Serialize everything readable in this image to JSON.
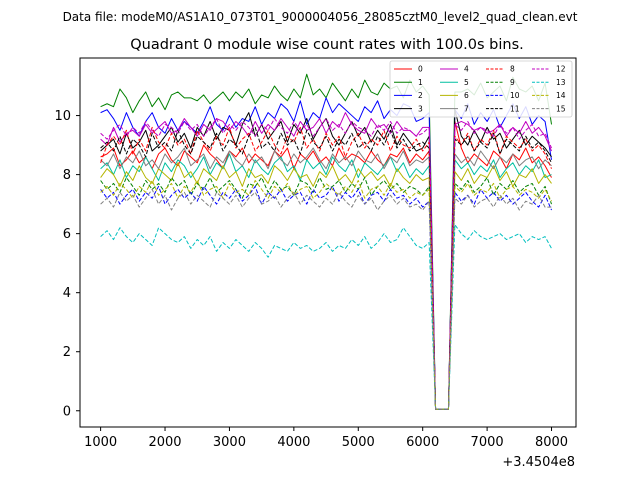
{
  "suptitle": "Data file: modeM0/AS1A10_073T01_9000004056_28085cztM0_level2_quad_clean.evt",
  "chart_data": {
    "type": "line",
    "title": "Quadrant 0 module wise count rates with 100.0s bins.",
    "xlabel": "",
    "ylabel": "",
    "x_offset_label": "+3.4504e8",
    "xlim": [
      680,
      8380
    ],
    "ylim": [
      -0.55,
      11.95
    ],
    "xticks": [
      1000,
      2000,
      3000,
      4000,
      5000,
      6000,
      7000,
      8000
    ],
    "yticks": [
      0,
      2,
      4,
      6,
      8,
      10
    ],
    "grid": false,
    "legend_position": "top-right",
    "x_start": 1000,
    "x_step": 100,
    "series": [
      {
        "name": "0",
        "color": "#ff0000",
        "dash": "solid",
        "values": [
          8.6,
          8.7,
          8.9,
          8.3,
          8.5,
          8.8,
          8.4,
          8.6,
          8.2,
          8.7,
          8.9,
          8.5,
          8.3,
          8.8,
          8.6,
          8.4,
          9.0,
          8.7,
          8.5,
          8.2,
          8.8,
          8.6,
          8.9,
          8.4,
          8.7,
          8.5,
          8.3,
          8.8,
          8.6,
          8.9,
          8.2,
          8.7,
          8.5,
          8.8,
          8.4,
          8.6,
          8.3,
          8.9,
          8.5,
          8.7,
          8.6,
          8.4,
          8.8,
          8.5,
          8.3,
          8.7,
          8.6,
          8.9,
          8.4,
          8.7,
          8.5,
          8.8,
          0.05,
          0.05,
          0.05,
          9.8,
          8.9,
          8.4,
          8.7,
          8.5,
          8.3,
          8.8,
          8.6,
          8.2,
          8.7,
          8.5,
          8.9,
          8.4,
          8.6,
          8.3,
          7.9
        ]
      },
      {
        "name": "1",
        "color": "#008000",
        "dash": "solid",
        "values": [
          10.3,
          10.4,
          10.3,
          10.9,
          10.6,
          10.1,
          10.5,
          10.8,
          10.3,
          10.6,
          10.2,
          10.7,
          10.8,
          10.6,
          10.6,
          10.5,
          10.7,
          10.4,
          10.6,
          10.8,
          10.5,
          10.8,
          10.6,
          10.9,
          10.4,
          10.7,
          10.6,
          11.0,
          10.7,
          10.5,
          10.9,
          10.6,
          11.4,
          10.7,
          10.9,
          10.6,
          11.1,
          10.8,
          10.5,
          10.9,
          10.6,
          11.2,
          10.8,
          10.7,
          11.1,
          10.9,
          11.0,
          10.6,
          11.2,
          10.8,
          11.0,
          10.7,
          0.05,
          0.05,
          0.05,
          10.8,
          10.8,
          10.9,
          10.7,
          11.1,
          10.6,
          10.8,
          11.0,
          10.5,
          11.3,
          10.9,
          10.8,
          11.0,
          10.5,
          11.1,
          9.7
        ]
      },
      {
        "name": "2",
        "color": "#0000ff",
        "dash": "solid",
        "values": [
          10.1,
          10.2,
          9.9,
          9.5,
          10.1,
          9.6,
          9.3,
          9.8,
          10.1,
          9.6,
          9.4,
          9.9,
          9.5,
          9.8,
          9.6,
          9.4,
          9.8,
          10.3,
          9.7,
          9.5,
          10.0,
          9.6,
          9.9,
          9.8,
          10.3,
          9.7,
          10.1,
          9.9,
          10.4,
          10.2,
          9.8,
          10.5,
          9.7,
          10.1,
          9.9,
          10.6,
          10.1,
          10.4,
          10.2,
          10.0,
          9.8,
          10.3,
          10.1,
          10.5,
          9.9,
          10.2,
          10.0,
          10.4,
          10.3,
          9.8,
          9.9,
          10.1,
          0.05,
          0.05,
          0.05,
          10.2,
          9.9,
          10.4,
          9.7,
          10.1,
          9.8,
          10.2,
          9.6,
          10.0,
          10.4,
          9.9,
          10.3,
          9.7,
          10.0,
          9.8,
          8.5
        ]
      },
      {
        "name": "3",
        "color": "#000000",
        "dash": "solid",
        "values": [
          8.8,
          9.0,
          9.2,
          8.7,
          9.4,
          8.9,
          9.1,
          9.5,
          8.8,
          9.0,
          9.3,
          9.6,
          9.1,
          9.4,
          8.9,
          9.6,
          9.3,
          9.8,
          9.2,
          9.6,
          9.5,
          9.0,
          9.7,
          10.1,
          9.3,
          9.7,
          9.2,
          9.5,
          9.8,
          9.1,
          9.7,
          9.4,
          9.9,
          9.2,
          9.6,
          9.9,
          9.3,
          9.0,
          9.4,
          9.8,
          9.3,
          9.6,
          9.1,
          9.5,
          9.2,
          9.7,
          9.0,
          9.4,
          9.1,
          8.8,
          8.9,
          9.3,
          0.05,
          0.05,
          0.05,
          10.2,
          9.3,
          9.0,
          9.5,
          9.1,
          9.6,
          9.2,
          9.4,
          8.9,
          9.2,
          9.5,
          9.0,
          9.3,
          9.1,
          8.9,
          8.6
        ]
      },
      {
        "name": "4",
        "color": "#c000c0",
        "dash": "solid",
        "values": [
          9.2,
          9.0,
          9.6,
          9.1,
          9.4,
          9.5,
          9.3,
          9.7,
          9.4,
          9.6,
          9.8,
          9.4,
          9.5,
          9.9,
          9.6,
          9.3,
          9.7,
          9.5,
          9.9,
          9.8,
          9.5,
          9.8,
          9.6,
          9.3,
          9.8,
          9.4,
          9.7,
          9.5,
          9.9,
          9.6,
          9.3,
          9.8,
          9.5,
          9.6,
          9.9,
          9.4,
          9.8,
          9.6,
          10.1,
          9.7,
          9.5,
          9.4,
          9.9,
          9.6,
          9.7,
          9.4,
          9.8,
          9.5,
          9.5,
          9.3,
          9.6,
          9.6,
          0.05,
          0.05,
          0.05,
          9.7,
          9.8,
          9.7,
          9.5,
          9.6,
          9.4,
          9.5,
          9.7,
          9.3,
          9.6,
          9.4,
          9.8,
          9.4,
          9.6,
          9.3,
          8.8
        ]
      },
      {
        "name": "5",
        "color": "#00bfa0",
        "dash": "solid",
        "values": [
          8.2,
          8.4,
          8.0,
          8.5,
          7.9,
          8.3,
          8.1,
          8.6,
          8.2,
          7.8,
          8.4,
          8.1,
          8.5,
          8.3,
          7.9,
          8.2,
          8.6,
          8.0,
          8.4,
          8.2,
          8.7,
          8.1,
          8.3,
          7.9,
          8.5,
          8.2,
          8.0,
          8.4,
          8.6,
          8.1,
          8.3,
          7.8,
          8.5,
          8.2,
          8.4,
          8.0,
          8.6,
          8.3,
          8.1,
          8.5,
          7.9,
          8.4,
          8.2,
          8.0,
          8.3,
          8.6,
          8.1,
          8.4,
          7.9,
          8.2,
          8.0,
          8.3,
          0.05,
          0.05,
          0.05,
          8.5,
          8.2,
          8.4,
          8.0,
          8.3,
          8.1,
          8.5,
          7.9,
          8.2,
          8.4,
          8.0,
          8.3,
          8.1,
          8.5,
          7.9,
          8.0
        ]
      },
      {
        "name": "6",
        "color": "#b5b500",
        "dash": "solid",
        "values": [
          7.9,
          8.2,
          8.0,
          7.6,
          8.1,
          7.8,
          8.3,
          7.9,
          7.7,
          8.2,
          8.0,
          7.8,
          8.4,
          7.9,
          8.1,
          7.7,
          8.2,
          8.0,
          7.8,
          8.3,
          7.9,
          8.1,
          7.6,
          8.2,
          7.9,
          8.0,
          7.7,
          8.3,
          8.1,
          7.8,
          8.2,
          7.9,
          8.0,
          7.6,
          8.1,
          7.9,
          8.3,
          7.8,
          8.0,
          7.7,
          8.2,
          7.9,
          8.1,
          7.8,
          8.0,
          7.6,
          8.2,
          7.9,
          7.7,
          8.0,
          7.8,
          7.9,
          0.05,
          0.05,
          0.05,
          8.1,
          7.8,
          8.2,
          7.7,
          8.0,
          7.9,
          8.3,
          7.8,
          8.1,
          7.6,
          8.0,
          7.9,
          8.2,
          7.7,
          8.0,
          7.7
        ]
      },
      {
        "name": "7",
        "color": "#808080",
        "dash": "solid",
        "values": [
          8.5,
          8.3,
          8.7,
          8.2,
          8.6,
          8.4,
          8.8,
          8.3,
          8.5,
          8.2,
          8.7,
          8.4,
          8.6,
          8.9,
          8.3,
          8.5,
          8.7,
          8.2,
          8.6,
          8.4,
          8.8,
          8.5,
          8.3,
          8.7,
          8.4,
          8.6,
          8.2,
          8.8,
          8.5,
          8.3,
          8.7,
          8.4,
          8.6,
          8.9,
          8.5,
          8.2,
          8.7,
          8.4,
          8.6,
          8.3,
          8.8,
          8.5,
          8.4,
          8.7,
          8.2,
          8.6,
          8.4,
          8.8,
          8.3,
          8.5,
          8.4,
          8.6,
          0.05,
          0.05,
          0.05,
          8.7,
          8.4,
          8.6,
          8.3,
          8.8,
          8.5,
          8.2,
          8.6,
          8.4,
          8.7,
          8.3,
          8.5,
          8.6,
          8.2,
          8.5,
          8.3
        ]
      },
      {
        "name": "8",
        "color": "#ff0000",
        "dash": "dashed",
        "values": [
          8.4,
          9.0,
          9.3,
          9.0,
          9.5,
          8.7,
          9.2,
          8.8,
          9.6,
          9.1,
          8.9,
          9.4,
          9.0,
          9.2,
          8.7,
          9.5,
          9.1,
          8.8,
          9.3,
          9.0,
          9.6,
          8.9,
          9.2,
          9.4,
          8.8,
          9.1,
          9.5,
          9.0,
          8.7,
          9.3,
          9.1,
          9.6,
          8.9,
          9.2,
          8.8,
          9.4,
          9.0,
          9.3,
          8.6,
          9.1,
          9.4,
          8.9,
          9.2,
          9.0,
          9.5,
          8.8,
          9.3,
          9.0,
          8.9,
          9.2,
          8.8,
          9.1,
          0.05,
          0.05,
          0.05,
          9.3,
          9.0,
          9.4,
          8.8,
          9.2,
          9.0,
          9.5,
          8.7,
          9.3,
          9.1,
          8.9,
          9.2,
          8.8,
          9.0,
          8.7,
          8.2
        ]
      },
      {
        "name": "9",
        "color": "#008000",
        "dash": "dashed",
        "values": [
          7.8,
          7.5,
          7.7,
          7.4,
          7.9,
          7.6,
          7.3,
          7.8,
          7.5,
          7.7,
          7.4,
          7.9,
          7.6,
          7.8,
          7.3,
          7.7,
          7.5,
          7.9,
          7.4,
          7.6,
          7.8,
          7.5,
          7.2,
          7.7,
          7.6,
          7.9,
          7.4,
          7.8,
          7.5,
          7.6,
          7.3,
          7.8,
          7.7,
          7.4,
          7.9,
          7.5,
          7.6,
          7.8,
          7.4,
          7.7,
          7.5,
          7.9,
          7.3,
          7.6,
          7.8,
          7.5,
          7.7,
          7.4,
          7.6,
          7.5,
          7.3,
          7.6,
          0.05,
          0.05,
          0.05,
          7.7,
          7.5,
          7.8,
          7.4,
          7.6,
          7.9,
          7.3,
          7.7,
          7.5,
          7.8,
          7.4,
          7.6,
          7.7,
          7.3,
          7.6,
          7.0
        ]
      },
      {
        "name": "10",
        "color": "#0000ff",
        "dash": "dashed",
        "values": [
          7.5,
          7.2,
          7.4,
          7.0,
          7.3,
          7.5,
          7.1,
          7.4,
          7.2,
          7.6,
          7.0,
          7.3,
          7.5,
          7.2,
          7.4,
          7.1,
          7.6,
          7.3,
          7.0,
          7.4,
          7.2,
          7.5,
          7.1,
          7.3,
          7.6,
          7.0,
          7.4,
          7.2,
          7.5,
          7.1,
          7.3,
          7.4,
          7.0,
          7.5,
          7.2,
          7.3,
          7.6,
          7.1,
          7.4,
          7.2,
          7.5,
          7.0,
          7.3,
          7.4,
          7.1,
          7.5,
          7.2,
          7.3,
          7.0,
          7.2,
          6.9,
          7.1,
          0.05,
          0.05,
          0.05,
          7.4,
          7.1,
          7.3,
          7.0,
          7.5,
          7.2,
          7.4,
          7.1,
          7.3,
          7.0,
          7.2,
          7.4,
          7.1,
          6.9,
          7.3,
          6.8
        ]
      },
      {
        "name": "11",
        "color": "#000000",
        "dash": "dashed",
        "values": [
          8.9,
          9.1,
          8.8,
          9.3,
          8.7,
          9.2,
          9.0,
          8.6,
          9.4,
          8.9,
          9.1,
          8.8,
          9.5,
          9.0,
          8.7,
          9.3,
          9.1,
          8.9,
          9.4,
          8.8,
          9.2,
          9.0,
          8.7,
          9.3,
          9.6,
          8.9,
          9.1,
          8.8,
          9.4,
          9.0,
          9.2,
          8.7,
          9.5,
          9.1,
          8.9,
          9.3,
          8.8,
          9.2,
          9.0,
          9.4,
          8.9,
          9.1,
          8.8,
          9.3,
          9.0,
          9.5,
          8.9,
          9.2,
          8.8,
          9.0,
          9.1,
          8.9,
          0.05,
          0.05,
          0.05,
          9.2,
          9.0,
          9.3,
          8.8,
          9.1,
          8.9,
          9.4,
          8.7,
          9.2,
          9.0,
          8.8,
          9.3,
          8.9,
          9.1,
          8.8,
          8.4
        ]
      },
      {
        "name": "12",
        "color": "#c000c0",
        "dash": "dashed",
        "values": [
          9.4,
          9.2,
          9.5,
          9.7,
          9.3,
          9.6,
          9.4,
          9.8,
          9.5,
          9.3,
          9.7,
          9.6,
          9.4,
          9.8,
          9.5,
          9.7,
          9.3,
          9.6,
          9.9,
          9.4,
          9.7,
          9.5,
          9.8,
          9.6,
          9.3,
          9.7,
          9.5,
          9.9,
          9.6,
          9.4,
          9.8,
          9.5,
          9.7,
          9.3,
          9.6,
          9.9,
          9.5,
          9.7,
          9.4,
          9.8,
          9.6,
          9.5,
          9.3,
          9.7,
          9.5,
          9.8,
          9.4,
          9.6,
          9.5,
          9.3,
          9.4,
          9.6,
          0.05,
          0.05,
          0.05,
          9.7,
          9.5,
          9.8,
          9.4,
          9.6,
          9.5,
          9.3,
          9.7,
          9.4,
          9.6,
          9.2,
          9.5,
          9.7,
          9.3,
          9.4,
          8.9
        ]
      },
      {
        "name": "13",
        "color": "#00bfbf",
        "dash": "dashed",
        "values": [
          5.9,
          6.1,
          5.8,
          6.2,
          5.9,
          5.7,
          6.0,
          5.8,
          5.6,
          6.2,
          6.0,
          5.8,
          5.7,
          5.9,
          5.5,
          5.8,
          5.6,
          5.9,
          5.4,
          5.7,
          5.5,
          5.8,
          5.6,
          5.4,
          5.7,
          5.5,
          5.2,
          5.6,
          5.5,
          5.4,
          5.7,
          5.5,
          5.6,
          5.4,
          5.5,
          5.7,
          5.4,
          5.6,
          5.5,
          5.8,
          5.6,
          5.9,
          5.5,
          5.7,
          6.0,
          5.7,
          5.8,
          6.2,
          5.9,
          5.6,
          5.5,
          5.7,
          0.05,
          0.05,
          0.05,
          6.3,
          6.0,
          5.8,
          6.1,
          5.9,
          5.8,
          5.9,
          6.0,
          5.8,
          5.9,
          6.0,
          5.7,
          5.9,
          5.8,
          5.9,
          5.5
        ]
      },
      {
        "name": "14",
        "color": "#b5b500",
        "dash": "dashed",
        "values": [
          7.4,
          7.6,
          7.3,
          7.7,
          7.5,
          7.2,
          7.6,
          7.4,
          7.8,
          7.3,
          7.5,
          7.7,
          7.2,
          7.6,
          7.4,
          7.8,
          7.3,
          7.5,
          7.6,
          7.2,
          7.7,
          7.4,
          7.5,
          7.3,
          7.8,
          7.5,
          7.2,
          7.6,
          7.4,
          7.7,
          7.3,
          7.5,
          7.6,
          7.2,
          7.4,
          7.7,
          7.5,
          7.3,
          7.6,
          7.4,
          7.8,
          7.2,
          7.5,
          7.6,
          7.3,
          7.7,
          7.4,
          7.5,
          7.2,
          7.4,
          7.3,
          7.5,
          0.05,
          0.05,
          0.05,
          7.6,
          7.4,
          7.7,
          7.3,
          7.5,
          7.4,
          7.7,
          7.2,
          7.5,
          7.6,
          7.3,
          7.5,
          7.4,
          7.2,
          7.5,
          7.1
        ]
      },
      {
        "name": "15",
        "color": "#808080",
        "dash": "dashed",
        "values": [
          7.0,
          7.2,
          6.9,
          7.4,
          7.1,
          7.3,
          6.9,
          7.2,
          7.5,
          7.0,
          7.3,
          6.8,
          7.2,
          7.4,
          7.0,
          7.3,
          7.1,
          6.9,
          7.4,
          7.2,
          7.0,
          7.3,
          6.9,
          7.2,
          7.4,
          7.0,
          7.1,
          7.3,
          6.9,
          7.2,
          7.4,
          7.0,
          7.3,
          7.1,
          6.9,
          7.2,
          7.0,
          7.4,
          7.1,
          6.9,
          7.3,
          7.0,
          7.2,
          6.8,
          7.1,
          7.3,
          7.0,
          7.2,
          6.9,
          7.0,
          6.8,
          7.1,
          0.05,
          0.05,
          0.05,
          7.2,
          7.0,
          7.3,
          6.9,
          7.1,
          7.2,
          6.9,
          7.3,
          7.0,
          7.2,
          6.8,
          7.1,
          7.0,
          7.3,
          6.9,
          6.9
        ]
      }
    ]
  }
}
